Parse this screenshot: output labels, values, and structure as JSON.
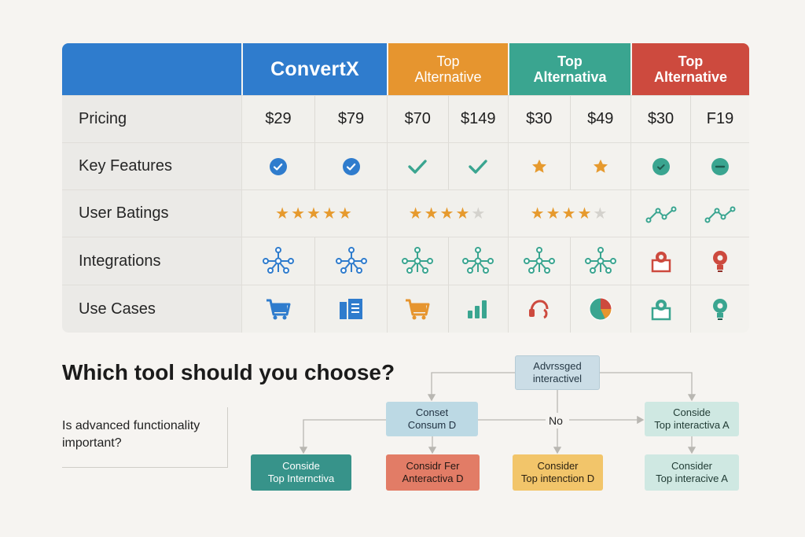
{
  "table": {
    "corner": "",
    "headers": [
      {
        "line1": "ConvertX",
        "line2": "",
        "color": "#2f7ccd"
      },
      {
        "line1": "Top",
        "line2": "Alternative",
        "color": "#e6952f"
      },
      {
        "line1": "Top",
        "line2": "Alternativa",
        "color": "#3aa590"
      },
      {
        "line1": "Top",
        "line2": "Alternative",
        "color": "#cd4a3e"
      }
    ],
    "rows": [
      {
        "label": "Pricing",
        "cells": [
          "$29",
          "$79",
          "$70",
          "$149",
          "$30",
          "$49",
          "$30",
          "F19"
        ]
      },
      {
        "label": "Key Features",
        "icons": [
          "check-circle-icon",
          "check-circle-icon",
          "checkmark-icon",
          "checkmark-icon",
          "star-icon",
          "star-icon",
          "check-circle-icon",
          "minus-circle-icon"
        ]
      },
      {
        "label": "User Batings",
        "ratings": [
          5,
          4,
          4
        ],
        "rating_max": 5,
        "icons": [
          "trend-line-icon",
          "trend-line-icon"
        ]
      },
      {
        "label": "Integrations",
        "icons": [
          "network-icon",
          "network-icon",
          "network-icon",
          "network-icon",
          "network-icon",
          "network-icon",
          "user-badge-icon",
          "lightbulb-icon"
        ]
      },
      {
        "label": "Use Cases",
        "icons": [
          "shopping-cart-icon",
          "document-icon",
          "shopping-cart-icon",
          "bar-chart-icon",
          "headset-icon",
          "pie-chart-icon",
          "user-badge-icon",
          "lightbulb-icon"
        ]
      }
    ]
  },
  "decision": {
    "title": "Which tool should you choose?",
    "question_line1": "Is advanced functionality",
    "question_line2": "important?",
    "nodes": {
      "top": {
        "line1": "Advrssged",
        "line2": "interactivel"
      },
      "mid": {
        "line1": "Conset",
        "line2": "Consum D"
      },
      "right": {
        "line1": "Conside",
        "line2": "Top interactiva A"
      },
      "b1": {
        "line1": "Conside",
        "line2": "Top Internctiva"
      },
      "b2": {
        "line1": "Considr Fer",
        "line2": "Anteractiva D"
      },
      "b3": {
        "line1": "Consider",
        "line2": "Top intenction D"
      },
      "b4": {
        "line1": "Consider",
        "line2": "Top interacive A"
      }
    },
    "edge_label": "No"
  },
  "colors": {
    "blue": "#2f7ccd",
    "orange": "#e6952f",
    "teal": "#3aa590",
    "red": "#cd4a3e",
    "star": "#e69a2e"
  }
}
